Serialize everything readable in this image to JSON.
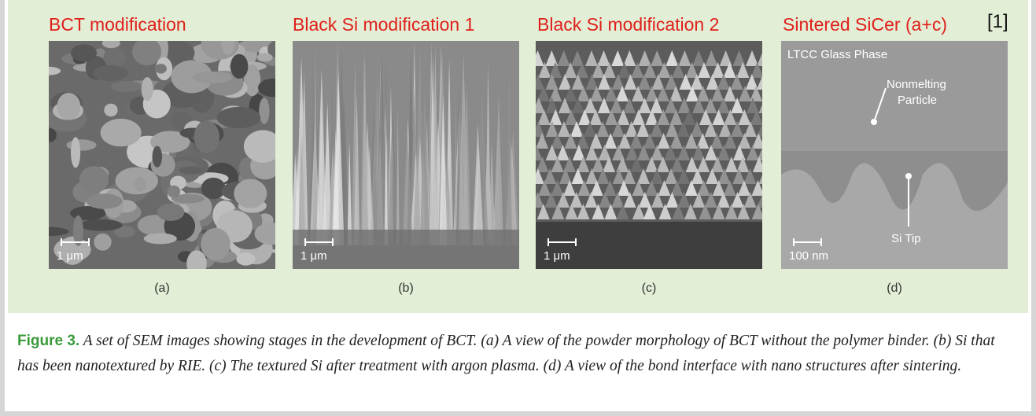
{
  "citation": "[1]",
  "panels": [
    {
      "heading": "BCT modification",
      "scale_bar": "1 μm",
      "label": "(a)"
    },
    {
      "heading": "Black Si modification 1",
      "scale_bar": "1 μm",
      "label": "(b)"
    },
    {
      "heading": "Black Si modification 2",
      "scale_bar": "1 μm",
      "label": "(c)"
    },
    {
      "heading": "Sintered SiCer (a+c)",
      "scale_bar": "100 nm",
      "label": "(d)",
      "annotations": [
        "LTCC Glass Phase",
        "Nonmelting",
        "Particle",
        "Si Tip"
      ]
    }
  ],
  "caption": {
    "label": "Figure 3.",
    "text": "A set of SEM images showing stages in the development of BCT. (a) A view of the powder morphology of BCT without the polymer binder. (b) Si that has been nanotextured by RIE. (c) The textured Si after treatment with argon plasma. (d) A view of the bond interface with nano structures after sintering."
  }
}
